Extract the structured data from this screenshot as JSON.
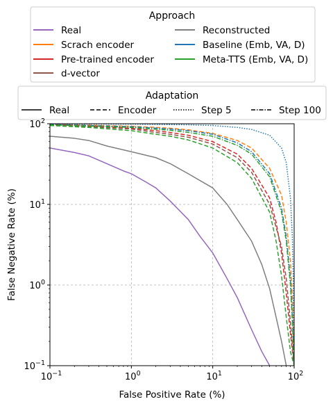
{
  "chart_data": {
    "type": "line",
    "title": "",
    "xlabel": "False Positive Rate (%)",
    "ylabel": "False Negative Rate (%)",
    "xscale": "log",
    "yscale": "log",
    "xlim": [
      0.1,
      100
    ],
    "ylim": [
      0.1,
      100
    ],
    "grid": true,
    "x_ticks": [
      {
        "value": 0.1,
        "mant": "10",
        "exp": "−1"
      },
      {
        "value": 1,
        "mant": "10",
        "exp": "0"
      },
      {
        "value": 10,
        "mant": "10",
        "exp": "1"
      },
      {
        "value": 100,
        "mant": "10",
        "exp": "2"
      }
    ],
    "y_ticks": [
      {
        "value": 0.1,
        "mant": "10",
        "exp": "−1"
      },
      {
        "value": 1,
        "mant": "10",
        "exp": "0"
      },
      {
        "value": 10,
        "mant": "10",
        "exp": "1"
      },
      {
        "value": 100,
        "mant": "10",
        "exp": "2"
      }
    ],
    "legend_approach": {
      "title": "Approach",
      "placement": "top",
      "entries": [
        {
          "label": "Real",
          "color": "#9467bd"
        },
        {
          "label": "Scrach encoder",
          "color": "#ff7f0e"
        },
        {
          "label": "Pre-trained encoder",
          "color": "#d62728"
        },
        {
          "label": "d-vector",
          "color": "#8c564b"
        },
        {
          "label": "Reconstructed",
          "color": "#7f7f7f"
        },
        {
          "label": "Baseline (Emb, VA, D)",
          "color": "#1f77b4"
        },
        {
          "label": "Meta-TTS (Emb, VA, D)",
          "color": "#2ca02c"
        }
      ]
    },
    "legend_adaptation": {
      "title": "Adaptation",
      "placement": "top",
      "entries": [
        {
          "label": "Real",
          "style": "solid"
        },
        {
          "label": "Encoder",
          "style": "dashed"
        },
        {
          "label": "Step 5",
          "style": "dotted"
        },
        {
          "label": "Step 100",
          "style": "dashdot"
        }
      ]
    },
    "series": [
      {
        "approach": "Real",
        "adaptation": "Real",
        "color": "#9467bd",
        "style": "solid",
        "points": [
          [
            0.1,
            50
          ],
          [
            0.2,
            44
          ],
          [
            0.3,
            40
          ],
          [
            0.5,
            32
          ],
          [
            0.8,
            26
          ],
          [
            1,
            24
          ],
          [
            1.5,
            19
          ],
          [
            2,
            16
          ],
          [
            3,
            11
          ],
          [
            5,
            6.5
          ],
          [
            7,
            4
          ],
          [
            10,
            2.5
          ],
          [
            15,
            1.2
          ],
          [
            20,
            0.7
          ],
          [
            30,
            0.28
          ],
          [
            40,
            0.15
          ],
          [
            50,
            0.1
          ]
        ]
      },
      {
        "approach": "Reconstructed",
        "adaptation": "Real",
        "color": "#7f7f7f",
        "style": "solid",
        "points": [
          [
            0.1,
            70
          ],
          [
            0.2,
            66
          ],
          [
            0.3,
            62
          ],
          [
            0.5,
            53
          ],
          [
            1,
            45
          ],
          [
            2,
            38
          ],
          [
            3,
            32
          ],
          [
            5,
            24
          ],
          [
            10,
            16
          ],
          [
            15,
            10
          ],
          [
            20,
            6.5
          ],
          [
            30,
            3.5
          ],
          [
            40,
            1.8
          ],
          [
            50,
            0.9
          ],
          [
            60,
            0.4
          ],
          [
            70,
            0.2
          ],
          [
            80,
            0.1
          ]
        ]
      },
      {
        "approach": "Scrach encoder",
        "adaptation": "Encoder",
        "color": "#ff7f0e",
        "style": "dashed",
        "points": [
          [
            0.1,
            98
          ],
          [
            0.3,
            96
          ],
          [
            1,
            93
          ],
          [
            2,
            90
          ],
          [
            3,
            88
          ],
          [
            5,
            84
          ],
          [
            10,
            76
          ],
          [
            20,
            62
          ],
          [
            30,
            50
          ],
          [
            50,
            28
          ],
          [
            70,
            13
          ],
          [
            80,
            6
          ],
          [
            90,
            2
          ],
          [
            95,
            0.7
          ],
          [
            98,
            0.2
          ],
          [
            100,
            0.1
          ]
        ]
      },
      {
        "approach": "Pre-trained encoder",
        "adaptation": "Encoder",
        "color": "#d62728",
        "style": "dashed",
        "points": [
          [
            0.1,
            97
          ],
          [
            0.3,
            94
          ],
          [
            1,
            88
          ],
          [
            2,
            82
          ],
          [
            3,
            78
          ],
          [
            5,
            72
          ],
          [
            10,
            60
          ],
          [
            20,
            42
          ],
          [
            30,
            28
          ],
          [
            50,
            12
          ],
          [
            60,
            6
          ],
          [
            70,
            2.5
          ],
          [
            80,
            0.8
          ],
          [
            90,
            0.25
          ],
          [
            100,
            0.1
          ]
        ]
      },
      {
        "approach": "d-vector",
        "adaptation": "Encoder",
        "color": "#8c564b",
        "style": "dashed",
        "points": [
          [
            0.1,
            96
          ],
          [
            0.3,
            92
          ],
          [
            1,
            86
          ],
          [
            2,
            78
          ],
          [
            3,
            74
          ],
          [
            5,
            68
          ],
          [
            10,
            56
          ],
          [
            20,
            38
          ],
          [
            30,
            25
          ],
          [
            50,
            10
          ],
          [
            70,
            3
          ],
          [
            80,
            1.2
          ],
          [
            90,
            0.35
          ],
          [
            100,
            0.1
          ]
        ]
      },
      {
        "approach": "Meta-TTS (Emb, VA, D)",
        "adaptation": "Encoder",
        "color": "#2ca02c",
        "style": "dashed",
        "points": [
          [
            0.1,
            95
          ],
          [
            0.3,
            90
          ],
          [
            1,
            82
          ],
          [
            2,
            74
          ],
          [
            3,
            70
          ],
          [
            5,
            63
          ],
          [
            10,
            50
          ],
          [
            20,
            33
          ],
          [
            30,
            21
          ],
          [
            50,
            8
          ],
          [
            60,
            3.5
          ],
          [
            70,
            1.3
          ],
          [
            80,
            0.4
          ],
          [
            90,
            0.15
          ],
          [
            100,
            0.1
          ]
        ]
      },
      {
        "approach": "Baseline (Emb, VA, D)",
        "adaptation": "Step 5",
        "color": "#1f77b4",
        "style": "dotted",
        "points": [
          [
            0.1,
            99.5
          ],
          [
            1,
            99
          ],
          [
            5,
            97
          ],
          [
            10,
            95
          ],
          [
            20,
            90
          ],
          [
            30,
            85
          ],
          [
            50,
            72
          ],
          [
            70,
            50
          ],
          [
            80,
            33
          ],
          [
            90,
            12
          ],
          [
            95,
            4
          ],
          [
            98,
            1
          ],
          [
            100,
            0.1
          ]
        ]
      },
      {
        "approach": "Baseline (Emb, VA, D)",
        "adaptation": "Step 100",
        "color": "#1f77b4",
        "style": "dashdot",
        "points": [
          [
            0.1,
            98
          ],
          [
            1,
            92
          ],
          [
            3,
            86
          ],
          [
            5,
            82
          ],
          [
            10,
            74
          ],
          [
            20,
            58
          ],
          [
            30,
            45
          ],
          [
            50,
            24
          ],
          [
            70,
            9
          ],
          [
            80,
            4
          ],
          [
            90,
            1.2
          ],
          [
            95,
            0.4
          ],
          [
            100,
            0.1
          ]
        ]
      },
      {
        "approach": "Meta-TTS (Emb, VA, D)",
        "adaptation": "Step 100",
        "color": "#2ca02c",
        "style": "dashdot",
        "points": [
          [
            0.1,
            97
          ],
          [
            1,
            90
          ],
          [
            3,
            83
          ],
          [
            5,
            78
          ],
          [
            10,
            70
          ],
          [
            20,
            54
          ],
          [
            30,
            42
          ],
          [
            50,
            22
          ],
          [
            70,
            8
          ],
          [
            80,
            3.5
          ],
          [
            90,
            1
          ],
          [
            95,
            0.35
          ],
          [
            100,
            0.1
          ]
        ]
      }
    ]
  }
}
